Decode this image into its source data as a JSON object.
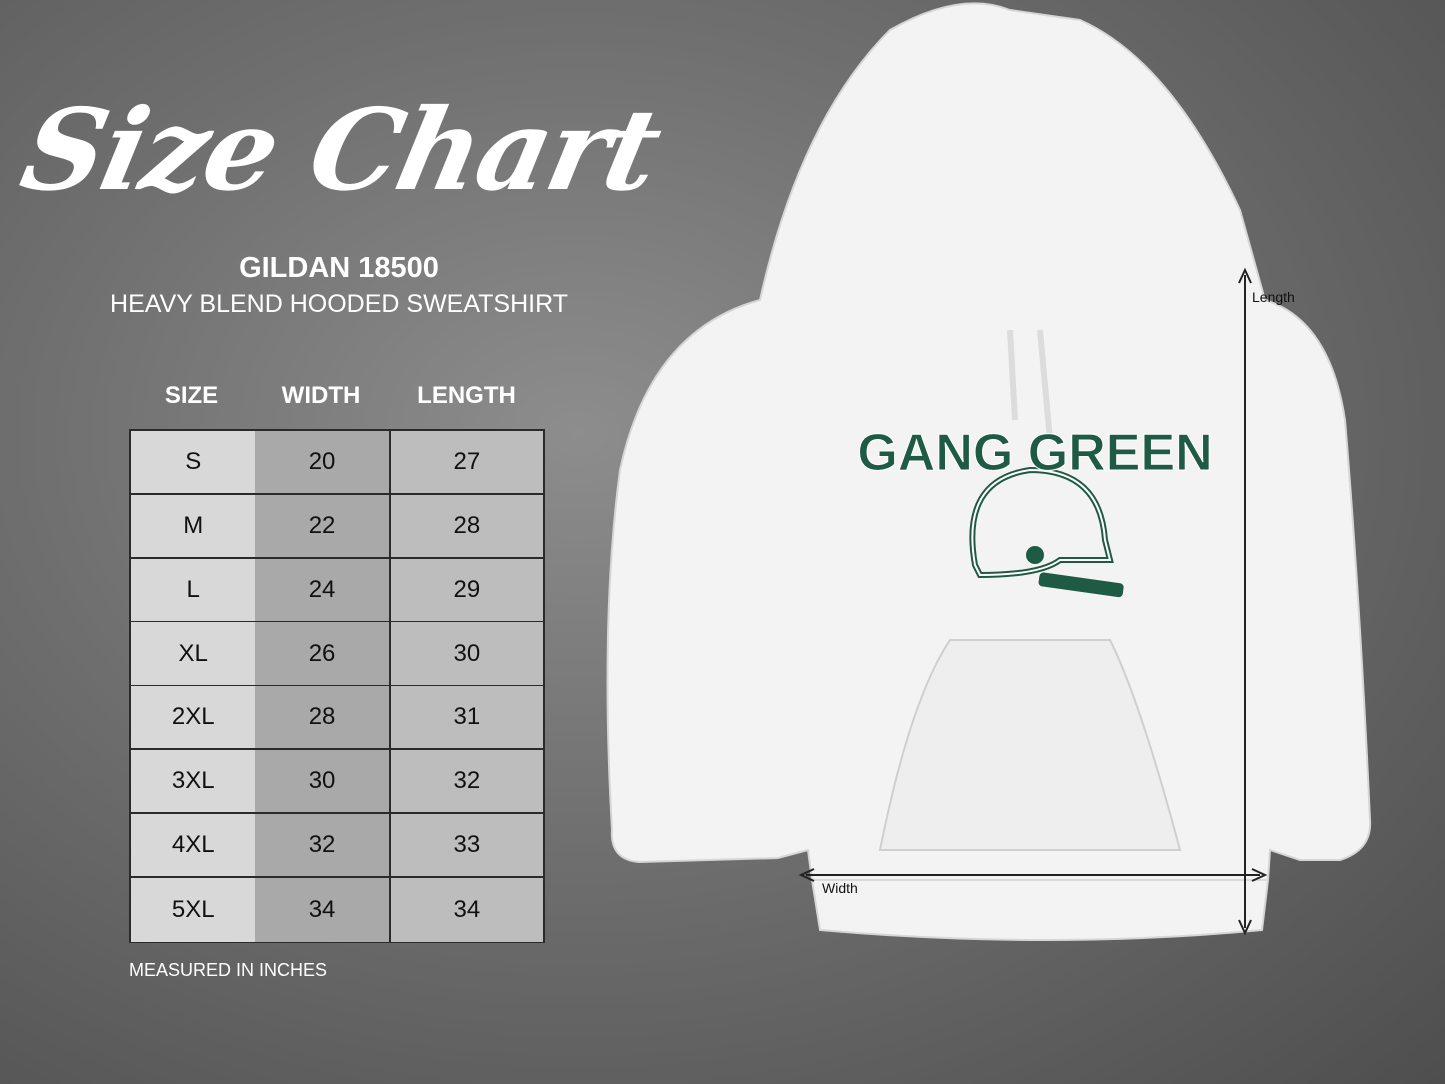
{
  "title": "Size Chart",
  "brand": "GILDAN 18500",
  "subtitle": "HEAVY BLEND HOODED SWEATSHIRT",
  "table": {
    "headers": [
      "SIZE",
      "WIDTH",
      "LENGTH"
    ],
    "rows": [
      [
        "S",
        "20",
        "27"
      ],
      [
        "M",
        "22",
        "28"
      ],
      [
        "L",
        "24",
        "29"
      ],
      [
        "XL",
        "26",
        "30"
      ],
      [
        "2XL",
        "28",
        "31"
      ],
      [
        "3XL",
        "30",
        "32"
      ],
      [
        "4XL",
        "32",
        "33"
      ],
      [
        "5XL",
        "34",
        "34"
      ]
    ]
  },
  "note": "MEASURED IN INCHES",
  "hoodie": {
    "print_text": "GANG GREEN",
    "print_color": "#1f5a44",
    "length_label": "Length",
    "width_label": "Width"
  }
}
